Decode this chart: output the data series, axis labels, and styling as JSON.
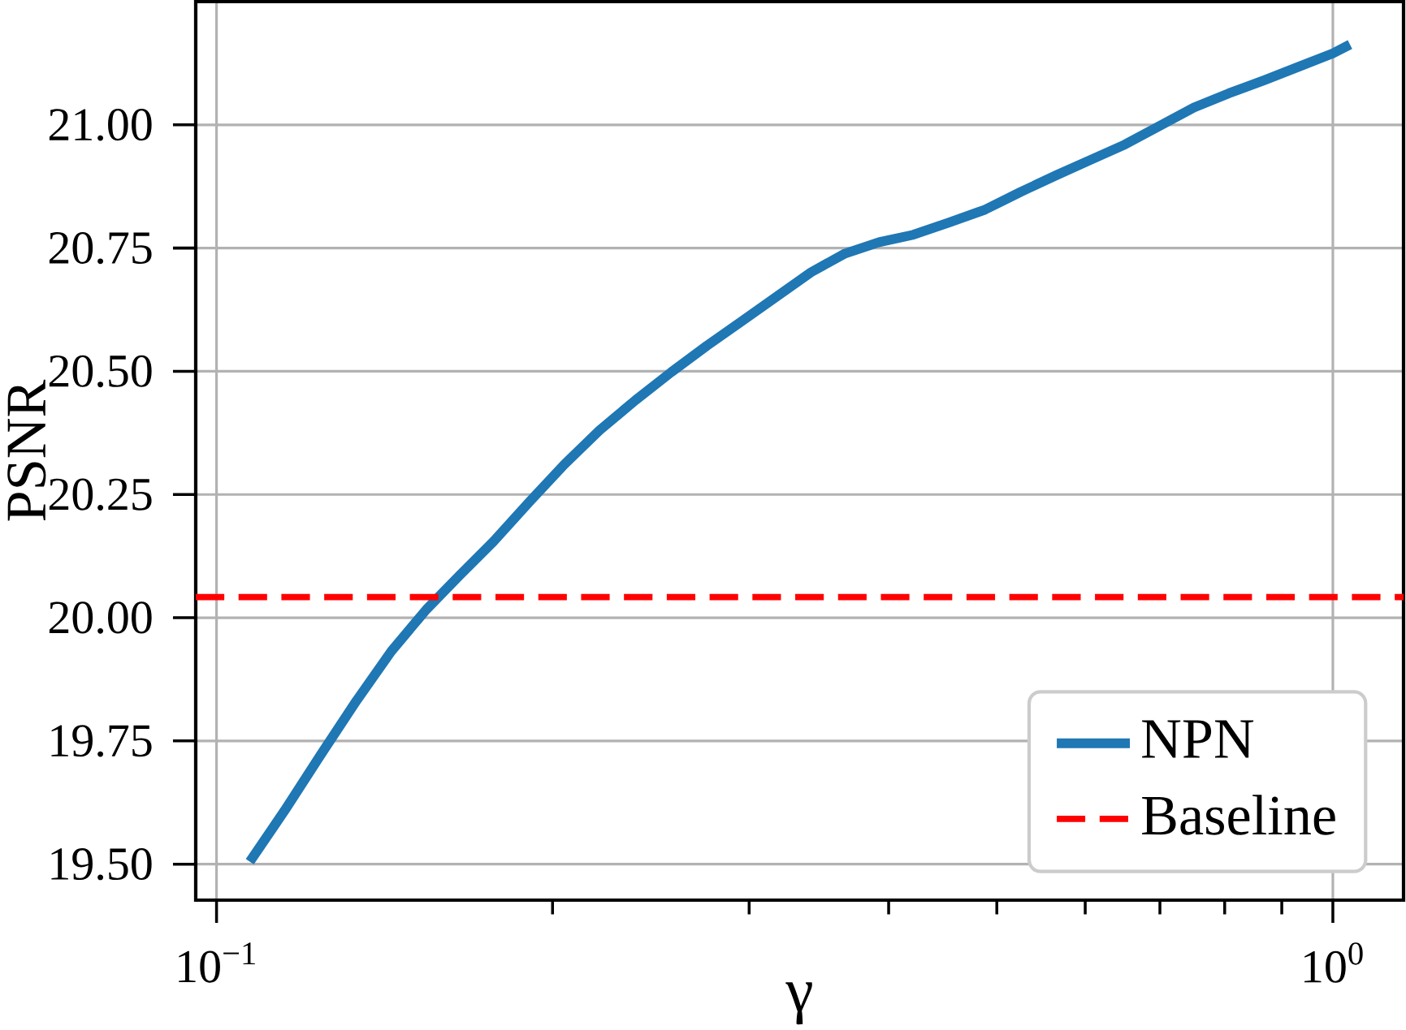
{
  "chart_data": {
    "type": "line",
    "xlabel": "γ",
    "ylabel": "PSNR",
    "log": "x",
    "x": [
      0.1071,
      0.1151,
      0.1239,
      0.1335,
      0.1434,
      0.1542,
      0.1651,
      0.1771,
      0.1907,
      0.2049,
      0.2203,
      0.2372,
      0.2554,
      0.275,
      0.2961,
      0.3177,
      0.3409,
      0.3657,
      0.3923,
      0.4209,
      0.4531,
      0.488,
      0.5254,
      0.5656,
      0.6069,
      0.6512,
      0.6998,
      0.7508,
      0.807,
      0.8689,
      0.9323,
      1.0,
      1.036
    ],
    "series": [
      {
        "name": "NPN",
        "color": "#1f77b4",
        "values": [
          19.505,
          19.609,
          19.721,
          19.832,
          19.932,
          20.017,
          20.086,
          20.155,
          20.235,
          20.311,
          20.38,
          20.441,
          20.498,
          20.552,
          20.603,
          20.652,
          20.701,
          20.739,
          20.762,
          20.777,
          20.802,
          20.828,
          20.864,
          20.898,
          20.929,
          20.96,
          20.998,
          21.035,
          21.064,
          21.091,
          21.118,
          21.145,
          21.163
        ]
      }
    ],
    "ref_lines": [
      {
        "axis": "y",
        "value": 20.042,
        "label": "Baseline",
        "color": "#ff0000",
        "line_style": "dashed"
      }
    ],
    "xlim": [
      0.0958,
      1.157
    ],
    "ylim": [
      19.427,
      21.25
    ],
    "xticks": [
      {
        "value": 0.1,
        "label": "10$^{−1}$"
      },
      {
        "value": 1,
        "label": "10$^{0}$"
      }
    ],
    "yticks": [
      {
        "value": 19.5,
        "label": "19.50"
      },
      {
        "value": 19.75,
        "label": "19.75"
      },
      {
        "value": 20,
        "label": "20.00"
      },
      {
        "value": 20.25,
        "label": "20.25"
      },
      {
        "value": 20.5,
        "label": "20.50"
      },
      {
        "value": 20.75,
        "label": "20.75"
      },
      {
        "value": 21,
        "label": "21.00"
      }
    ],
    "grid": true,
    "legend": "bottom right",
    "marker": "none",
    "line_style": "solid"
  }
}
